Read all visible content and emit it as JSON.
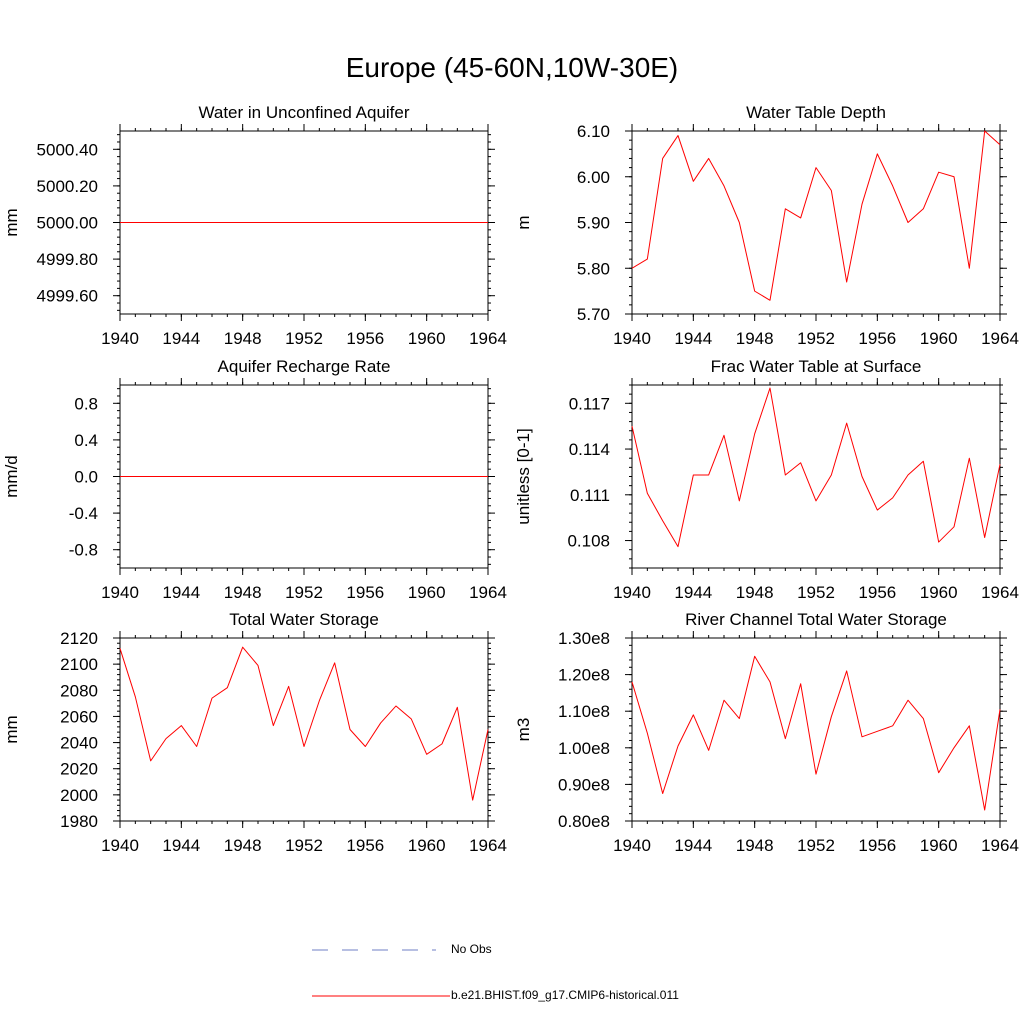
{
  "page_title": "Europe (45-60N,10W-30E)",
  "colors": {
    "model": "#ff0000",
    "obs": "#6f7fc6",
    "axis": "#000000"
  },
  "legend": {
    "obs_label": "No Obs",
    "model_label": "b.e21.BHIST.f09_g17.CMIP6-historical.011"
  },
  "chart_data": [
    {
      "type": "line",
      "title": "Water in Unconfined Aquifer",
      "xlabel": "",
      "ylabel": "mm",
      "xlim": [
        1940,
        1964
      ],
      "ylim": [
        4999.5,
        5000.5
      ],
      "xticks": [
        1940,
        1944,
        1948,
        1952,
        1956,
        1960,
        1964
      ],
      "xticklabels": [
        "1940",
        "1944",
        "1948",
        "1952",
        "1956",
        "1960",
        "1964"
      ],
      "yticks": [
        4999.6,
        4999.8,
        5000.0,
        5000.2,
        5000.4
      ],
      "yticklabels": [
        "4999.60",
        "4999.80",
        "5000.00",
        "5000.20",
        "5000.40"
      ],
      "yminor_step": 0.04,
      "x": [
        1940,
        1941,
        1942,
        1943,
        1944,
        1945,
        1946,
        1947,
        1948,
        1949,
        1950,
        1951,
        1952,
        1953,
        1954,
        1955,
        1956,
        1957,
        1958,
        1959,
        1960,
        1961,
        1962,
        1963,
        1964
      ],
      "series": [
        {
          "values": [
            5000,
            5000,
            5000,
            5000,
            5000,
            5000,
            5000,
            5000,
            5000,
            5000,
            5000,
            5000,
            5000,
            5000,
            5000,
            5000,
            5000,
            5000,
            5000,
            5000,
            5000,
            5000,
            5000,
            5000,
            5000
          ]
        }
      ]
    },
    {
      "type": "line",
      "title": "Water Table Depth",
      "xlabel": "",
      "ylabel": "m",
      "xlim": [
        1940,
        1964
      ],
      "ylim": [
        5.7,
        6.1
      ],
      "xticks": [
        1940,
        1944,
        1948,
        1952,
        1956,
        1960,
        1964
      ],
      "xticklabels": [
        "1940",
        "1944",
        "1948",
        "1952",
        "1956",
        "1960",
        "1964"
      ],
      "yticks": [
        5.7,
        5.8,
        5.9,
        6.0,
        6.1
      ],
      "yticklabels": [
        "5.70",
        "5.80",
        "5.90",
        "6.00",
        "6.10"
      ],
      "yminor_step": 0.02,
      "x": [
        1940,
        1941,
        1942,
        1943,
        1944,
        1945,
        1946,
        1947,
        1948,
        1949,
        1950,
        1951,
        1952,
        1953,
        1954,
        1955,
        1956,
        1957,
        1958,
        1959,
        1960,
        1961,
        1962,
        1963,
        1964
      ],
      "series": [
        {
          "values": [
            5.8,
            5.82,
            6.04,
            6.09,
            5.99,
            6.04,
            5.98,
            5.9,
            5.75,
            5.73,
            5.93,
            5.91,
            6.02,
            5.97,
            5.77,
            5.94,
            6.05,
            5.98,
            5.9,
            5.93,
            6.01,
            6.0,
            5.8,
            6.1,
            6.07
          ]
        }
      ]
    },
    {
      "type": "line",
      "title": "Aquifer Recharge Rate",
      "xlabel": "",
      "ylabel": "mm/d",
      "xlim": [
        1940,
        1964
      ],
      "ylim": [
        -1.0,
        1.0
      ],
      "xticks": [
        1940,
        1944,
        1948,
        1952,
        1956,
        1960,
        1964
      ],
      "xticklabels": [
        "1940",
        "1944",
        "1948",
        "1952",
        "1956",
        "1960",
        "1964"
      ],
      "yticks": [
        -0.8,
        -0.4,
        0.0,
        0.4,
        0.8
      ],
      "yticklabels": [
        "-0.8",
        "-0.4",
        "0.0",
        "0.4",
        "0.8"
      ],
      "yminor_step": 0.08,
      "x": [
        1940,
        1941,
        1942,
        1943,
        1944,
        1945,
        1946,
        1947,
        1948,
        1949,
        1950,
        1951,
        1952,
        1953,
        1954,
        1955,
        1956,
        1957,
        1958,
        1959,
        1960,
        1961,
        1962,
        1963,
        1964
      ],
      "series": [
        {
          "values": [
            0,
            0,
            0,
            0,
            0,
            0,
            0,
            0,
            0,
            0,
            0,
            0,
            0,
            0,
            0,
            0,
            0,
            0,
            0,
            0,
            0,
            0,
            0,
            0,
            0
          ]
        }
      ]
    },
    {
      "type": "line",
      "title": "Frac Water Table at Surface",
      "xlabel": "",
      "ylabel": "unitless [0-1]",
      "xlim": [
        1940,
        1964
      ],
      "ylim": [
        0.1062,
        0.1182
      ],
      "xticks": [
        1940,
        1944,
        1948,
        1952,
        1956,
        1960,
        1964
      ],
      "xticklabels": [
        "1940",
        "1944",
        "1948",
        "1952",
        "1956",
        "1960",
        "1964"
      ],
      "yticks": [
        0.108,
        0.111,
        0.114,
        0.117
      ],
      "yticklabels": [
        "0.108",
        "0.111",
        "0.114",
        "0.117"
      ],
      "yminor_step": 0.0006,
      "x": [
        1940,
        1941,
        1942,
        1943,
        1944,
        1945,
        1946,
        1947,
        1948,
        1949,
        1950,
        1951,
        1952,
        1953,
        1954,
        1955,
        1956,
        1957,
        1958,
        1959,
        1960,
        1961,
        1962,
        1963,
        1964
      ],
      "series": [
        {
          "values": [
            0.1155,
            0.1111,
            0.1093,
            0.1076,
            0.1123,
            0.1123,
            0.1149,
            0.1106,
            0.115,
            0.118,
            0.1123,
            0.1131,
            0.1106,
            0.1123,
            0.1157,
            0.1122,
            0.11,
            0.1108,
            0.1123,
            0.1132,
            0.1079,
            0.1089,
            0.1134,
            0.1082,
            0.113
          ]
        }
      ]
    },
    {
      "type": "line",
      "title": "Total Water Storage",
      "xlabel": "",
      "ylabel": "mm",
      "xlim": [
        1940,
        1964
      ],
      "ylim": [
        1980,
        2120
      ],
      "xticks": [
        1940,
        1944,
        1948,
        1952,
        1956,
        1960,
        1964
      ],
      "xticklabels": [
        "1940",
        "1944",
        "1948",
        "1952",
        "1956",
        "1960",
        "1964"
      ],
      "yticks": [
        1980,
        2000,
        2020,
        2040,
        2060,
        2080,
        2100,
        2120
      ],
      "yticklabels": [
        "1980",
        "2000",
        "2020",
        "2040",
        "2060",
        "2080",
        "2100",
        "2120"
      ],
      "yminor_step": 4,
      "x": [
        1940,
        1941,
        1942,
        1943,
        1944,
        1945,
        1946,
        1947,
        1948,
        1949,
        1950,
        1951,
        1952,
        1953,
        1954,
        1955,
        1956,
        1957,
        1958,
        1959,
        1960,
        1961,
        1962,
        1963,
        1964
      ],
      "series": [
        {
          "values": [
            2112,
            2075,
            2026,
            2043,
            2053,
            2037,
            2074,
            2082,
            2113,
            2099,
            2053,
            2083,
            2037,
            2072,
            2101,
            2050,
            2037,
            2055,
            2068,
            2058,
            2031,
            2039,
            2067,
            1996,
            2050
          ]
        }
      ]
    },
    {
      "type": "line",
      "title": "River Channel Total Water Storage",
      "xlabel": "",
      "ylabel": "m3",
      "xlim": [
        1940,
        1964
      ],
      "ylim": [
        80000000,
        130000000
      ],
      "xticks": [
        1940,
        1944,
        1948,
        1952,
        1956,
        1960,
        1964
      ],
      "xticklabels": [
        "1940",
        "1944",
        "1948",
        "1952",
        "1956",
        "1960",
        "1964"
      ],
      "yticks": [
        80000000,
        90000000,
        100000000,
        110000000,
        120000000,
        130000000
      ],
      "yticklabels": [
        "0.80e8",
        "0.90e8",
        "1.00e8",
        "1.10e8",
        "1.20e8",
        "1.30e8"
      ],
      "yminor_step": 2000000,
      "x": [
        1940,
        1941,
        1942,
        1943,
        1944,
        1945,
        1946,
        1947,
        1948,
        1949,
        1950,
        1951,
        1952,
        1953,
        1954,
        1955,
        1956,
        1957,
        1958,
        1959,
        1960,
        1961,
        1962,
        1963,
        1964
      ],
      "series": [
        {
          "values": [
            118000000,
            104000000,
            87500000,
            100500000,
            109000000,
            99300000,
            113000000,
            108000000,
            125000000,
            118000000,
            102500000,
            117500000,
            92800000,
            108500000,
            121000000,
            103000000,
            104500000,
            106000000,
            113000000,
            108000000,
            93200000,
            100000000,
            106000000,
            83000000,
            110500000
          ]
        }
      ]
    }
  ]
}
